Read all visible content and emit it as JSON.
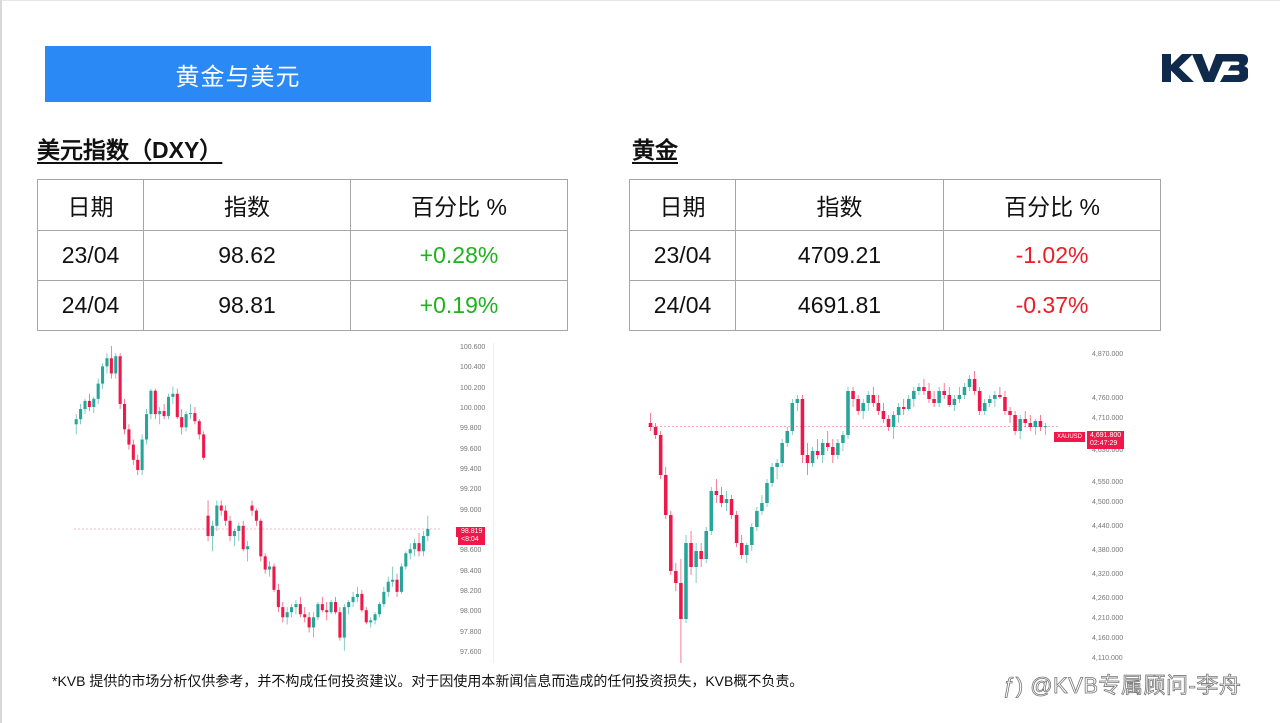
{
  "header": {
    "banner_title": "黄金与美元",
    "logo_text": "KVB",
    "banner_color": "#2a89f5"
  },
  "dxy": {
    "section_title": "美元指数（DXY）",
    "table": {
      "headers": [
        "日期",
        "指数",
        "百分比 %"
      ],
      "rows": [
        {
          "date": "23/04",
          "value": "98.62",
          "change": "+0.28%"
        },
        {
          "date": "24/04",
          "value": "98.81",
          "change": "+0.19%"
        }
      ]
    }
  },
  "gold": {
    "section_title": "黄金",
    "table": {
      "headers": [
        "日期",
        "指数",
        "百分比 %"
      ],
      "rows": [
        {
          "date": "23/04",
          "value": "4709.21",
          "change": "-1.02%"
        },
        {
          "date": "24/04",
          "value": "4691.81",
          "change": "-0.37%"
        }
      ]
    }
  },
  "colors": {
    "up": "#1db31d",
    "down": "#ee1c25",
    "candle_up": "#26a69a",
    "candle_down": "#f0184a",
    "price_tag": "#f0184a"
  },
  "chart_data": [
    {
      "type": "candlestick",
      "title": "DXY",
      "symbol_tag": "DXY",
      "last_price_tag": "98.819",
      "countdown_tag": "<8:04",
      "ylim": [
        97.5,
        100.65
      ],
      "y_ticks": [
        "100.600",
        "100.400",
        "100.200",
        "100.000",
        "99.800",
        "99.600",
        "99.400",
        "99.200",
        "99.000",
        "98.800",
        "98.600",
        "98.400",
        "98.200",
        "98.000",
        "97.800",
        "97.600"
      ],
      "last_price": 98.819,
      "candles": [
        [
          99.85,
          99.95,
          99.75,
          99.9
        ],
        [
          99.9,
          100.05,
          99.85,
          100.0
        ],
        [
          100.0,
          100.1,
          99.95,
          100.08
        ],
        [
          100.08,
          100.15,
          99.98,
          100.02
        ],
        [
          100.02,
          100.12,
          99.96,
          100.1
        ],
        [
          100.1,
          100.3,
          100.05,
          100.25
        ],
        [
          100.25,
          100.45,
          100.2,
          100.42
        ],
        [
          100.42,
          100.55,
          100.35,
          100.5
        ],
        [
          100.5,
          100.62,
          100.3,
          100.35
        ],
        [
          100.35,
          100.55,
          100.3,
          100.52
        ],
        [
          100.52,
          100.55,
          100.0,
          100.05
        ],
        [
          100.05,
          100.1,
          99.75,
          99.8
        ],
        [
          99.8,
          99.85,
          99.6,
          99.65
        ],
        [
          99.65,
          99.7,
          99.45,
          99.5
        ],
        [
          99.5,
          99.55,
          99.35,
          99.4
        ],
        [
          99.4,
          99.75,
          99.35,
          99.7
        ],
        [
          99.7,
          100.0,
          99.65,
          99.95
        ],
        [
          99.95,
          100.2,
          99.9,
          100.18
        ],
        [
          100.18,
          100.2,
          99.9,
          99.95
        ],
        [
          99.95,
          100.02,
          99.85,
          99.98
        ],
        [
          99.98,
          100.05,
          99.9,
          99.93
        ],
        [
          99.93,
          100.15,
          99.9,
          100.12
        ],
        [
          100.12,
          100.22,
          100.05,
          100.15
        ],
        [
          100.15,
          100.2,
          99.9,
          99.92
        ],
        [
          99.92,
          100.0,
          99.75,
          99.82
        ],
        [
          99.82,
          99.98,
          99.78,
          99.95
        ],
        [
          99.95,
          100.05,
          99.9,
          99.96
        ],
        [
          99.96,
          100.02,
          99.85,
          99.88
        ],
        [
          99.88,
          99.9,
          99.7,
          99.75
        ],
        [
          99.75,
          99.78,
          99.5,
          99.52
        ],
        [
          98.95,
          99.1,
          98.7,
          98.75
        ],
        [
          98.75,
          98.9,
          98.6,
          98.85
        ],
        [
          98.85,
          99.1,
          98.8,
          99.05
        ],
        [
          99.05,
          99.1,
          98.95,
          99.0
        ],
        [
          99.0,
          99.05,
          98.85,
          98.9
        ],
        [
          98.9,
          98.95,
          98.7,
          98.75
        ],
        [
          98.75,
          98.82,
          98.65,
          98.8
        ],
        [
          98.8,
          98.88,
          98.7,
          98.85
        ],
        [
          98.85,
          98.9,
          98.6,
          98.62
        ],
        [
          98.62,
          98.7,
          98.5,
          98.65
        ],
        [
          99.05,
          99.1,
          98.95,
          99.0
        ],
        [
          99.0,
          99.02,
          98.85,
          98.9
        ],
        [
          98.9,
          98.92,
          98.5,
          98.55
        ],
        [
          98.55,
          98.58,
          98.38,
          98.42
        ],
        [
          98.42,
          98.5,
          98.35,
          98.45
        ],
        [
          98.45,
          98.48,
          98.2,
          98.22
        ],
        [
          98.22,
          98.28,
          98.0,
          98.05
        ],
        [
          98.05,
          98.1,
          97.9,
          97.95
        ],
        [
          97.95,
          98.05,
          97.88,
          98.0
        ],
        [
          98.0,
          98.08,
          97.95,
          98.05
        ],
        [
          98.05,
          98.12,
          97.98,
          98.08
        ],
        [
          98.08,
          98.15,
          97.95,
          97.98
        ],
        [
          97.98,
          98.05,
          97.9,
          97.95
        ],
        [
          97.95,
          98.0,
          97.8,
          97.85
        ],
        [
          97.85,
          98.0,
          97.75,
          97.95
        ],
        [
          97.95,
          98.1,
          97.92,
          98.08
        ],
        [
          98.08,
          98.15,
          98.0,
          98.02
        ],
        [
          98.02,
          98.1,
          97.92,
          98.0
        ],
        [
          98.0,
          98.12,
          97.98,
          98.1
        ],
        [
          98.1,
          98.15,
          97.98,
          98.0
        ],
        [
          98.0,
          98.05,
          97.72,
          97.75
        ],
        [
          97.75,
          98.08,
          97.62,
          98.05
        ],
        [
          98.05,
          98.12,
          97.98,
          98.1
        ],
        [
          98.1,
          98.2,
          98.05,
          98.15
        ],
        [
          98.15,
          98.25,
          98.1,
          98.18
        ],
        [
          98.18,
          98.22,
          98.0,
          98.02
        ],
        [
          98.02,
          98.05,
          97.88,
          97.9
        ],
        [
          97.9,
          97.95,
          97.85,
          97.92
        ],
        [
          97.92,
          98.0,
          97.88,
          97.98
        ],
        [
          97.98,
          98.1,
          97.95,
          98.08
        ],
        [
          98.08,
          98.25,
          98.05,
          98.2
        ],
        [
          98.2,
          98.35,
          98.15,
          98.3
        ],
        [
          98.3,
          98.45,
          98.25,
          98.32
        ],
        [
          98.32,
          98.38,
          98.15,
          98.2
        ],
        [
          98.2,
          98.48,
          98.18,
          98.45
        ],
        [
          98.45,
          98.6,
          98.42,
          98.58
        ],
        [
          98.58,
          98.68,
          98.52,
          98.62
        ],
        [
          98.62,
          98.72,
          98.55,
          98.68
        ],
        [
          98.68,
          98.78,
          98.55,
          98.6
        ],
        [
          98.6,
          98.8,
          98.55,
          98.75
        ],
        [
          98.75,
          98.95,
          98.7,
          98.82
        ]
      ]
    },
    {
      "type": "candlestick",
      "title": "XAUUSD",
      "symbol_tag": "XAUUSD",
      "last_price_tag": "4,691.800",
      "countdown_tag": "02:47:29",
      "ylim": [
        4100,
        4900
      ],
      "y_ticks": [
        "4,870.000",
        "4,760.000",
        "4,710.000",
        "4,630.000",
        "4,550.000",
        "4,500.000",
        "4,440.000",
        "4,380.000",
        "4,320.000",
        "4,260.000",
        "4,210.000",
        "4,160.000",
        "4,110.000"
      ],
      "last_price": 4691.8,
      "candles": [
        [
          4700,
          4725,
          4680,
          4690
        ],
        [
          4690,
          4700,
          4660,
          4670
        ],
        [
          4670,
          4680,
          4560,
          4570
        ],
        [
          4570,
          4590,
          4460,
          4470
        ],
        [
          4470,
          4480,
          4320,
          4330
        ],
        [
          4330,
          4350,
          4280,
          4300
        ],
        [
          4300,
          4360,
          4100,
          4210
        ],
        [
          4210,
          4420,
          4200,
          4400
        ],
        [
          4400,
          4430,
          4320,
          4340
        ],
        [
          4340,
          4400,
          4300,
          4380
        ],
        [
          4380,
          4400,
          4340,
          4360
        ],
        [
          4360,
          4440,
          4350,
          4430
        ],
        [
          4430,
          4540,
          4420,
          4530
        ],
        [
          4530,
          4560,
          4500,
          4520
        ],
        [
          4520,
          4540,
          4490,
          4500
        ],
        [
          4500,
          4530,
          4480,
          4510
        ],
        [
          4510,
          4520,
          4460,
          4470
        ],
        [
          4470,
          4480,
          4390,
          4400
        ],
        [
          4400,
          4420,
          4360,
          4370
        ],
        [
          4370,
          4400,
          4350,
          4395
        ],
        [
          4395,
          4450,
          4380,
          4440
        ],
        [
          4440,
          4490,
          4430,
          4480
        ],
        [
          4480,
          4520,
          4470,
          4500
        ],
        [
          4500,
          4560,
          4490,
          4550
        ],
        [
          4550,
          4600,
          4540,
          4590
        ],
        [
          4590,
          4610,
          4560,
          4600
        ],
        [
          4600,
          4660,
          4590,
          4650
        ],
        [
          4650,
          4690,
          4640,
          4680
        ],
        [
          4680,
          4760,
          4670,
          4750
        ],
        [
          4750,
          4770,
          4730,
          4760
        ],
        [
          4760,
          4770,
          4600,
          4620
        ],
        [
          4620,
          4650,
          4570,
          4600
        ],
        [
          4600,
          4640,
          4590,
          4630
        ],
        [
          4630,
          4660,
          4610,
          4620
        ],
        [
          4620,
          4660,
          4600,
          4650
        ],
        [
          4650,
          4680,
          4630,
          4640
        ],
        [
          4640,
          4660,
          4600,
          4620
        ],
        [
          4620,
          4660,
          4610,
          4650
        ],
        [
          4650,
          4680,
          4630,
          4670
        ],
        [
          4670,
          4790,
          4660,
          4780
        ],
        [
          4780,
          4790,
          4740,
          4760
        ],
        [
          4760,
          4770,
          4720,
          4730
        ],
        [
          4730,
          4760,
          4710,
          4750
        ],
        [
          4750,
          4780,
          4730,
          4770
        ],
        [
          4770,
          4790,
          4740,
          4750
        ],
        [
          4750,
          4770,
          4720,
          4730
        ],
        [
          4730,
          4750,
          4700,
          4710
        ],
        [
          4710,
          4720,
          4680,
          4690
        ],
        [
          4690,
          4730,
          4660,
          4720
        ],
        [
          4720,
          4750,
          4700,
          4740
        ],
        [
          4740,
          4760,
          4720,
          4735
        ],
        [
          4735,
          4770,
          4730,
          4760
        ],
        [
          4760,
          4790,
          4740,
          4780
        ],
        [
          4780,
          4800,
          4770,
          4790
        ],
        [
          4790,
          4810,
          4770,
          4780
        ],
        [
          4780,
          4800,
          4750,
          4760
        ],
        [
          4760,
          4780,
          4740,
          4750
        ],
        [
          4750,
          4790,
          4740,
          4780
        ],
        [
          4780,
          4800,
          4760,
          4770
        ],
        [
          4770,
          4790,
          4740,
          4745
        ],
        [
          4745,
          4770,
          4730,
          4760
        ],
        [
          4760,
          4790,
          4750,
          4770
        ],
        [
          4770,
          4800,
          4760,
          4790
        ],
        [
          4790,
          4820,
          4780,
          4810
        ],
        [
          4810,
          4830,
          4770,
          4780
        ],
        [
          4780,
          4790,
          4720,
          4730
        ],
        [
          4730,
          4760,
          4720,
          4750
        ],
        [
          4750,
          4770,
          4740,
          4760
        ],
        [
          4760,
          4780,
          4740,
          4770
        ],
        [
          4770,
          4790,
          4760,
          4765
        ],
        [
          4765,
          4780,
          4720,
          4730
        ],
        [
          4730,
          4740,
          4700,
          4720
        ],
        [
          4720,
          4730,
          4670,
          4680
        ],
        [
          4680,
          4720,
          4660,
          4710
        ],
        [
          4710,
          4730,
          4690,
          4700
        ],
        [
          4700,
          4720,
          4680,
          4690
        ],
        [
          4690,
          4710,
          4670,
          4705
        ],
        [
          4705,
          4720,
          4680,
          4690
        ],
        [
          4690,
          4700,
          4670,
          4692
        ]
      ]
    }
  ],
  "footer": {
    "disclaimer": "*KVB 提供的市场分析仅供参考，并不构成任何投资建议。对于因使用本新闻信息而造成的任何投资损失，KVB概不负责。",
    "watermark": "@KVB专属顾问-李舟"
  }
}
